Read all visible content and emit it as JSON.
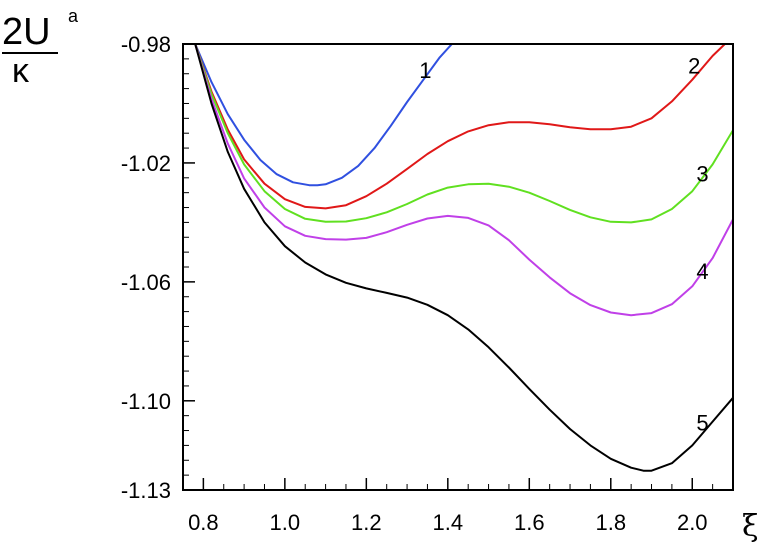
{
  "chart_data": {
    "type": "line",
    "xlabel": "ξ",
    "ylabel": {
      "numerator": "2U",
      "superscript": "a",
      "denominator": "κ"
    },
    "xlim": [
      0.75,
      2.1
    ],
    "ylim": [
      -1.13,
      -0.98
    ],
    "x_ticks": [
      0.8,
      1.0,
      1.2,
      1.4,
      1.6,
      1.8,
      2.0
    ],
    "x_tick_labels": [
      "0.8",
      "1.0",
      "1.2",
      "1.4",
      "1.6",
      "1.8",
      "2.0"
    ],
    "y_ticks": [
      -0.98,
      -1.02,
      -1.06,
      -1.1,
      -1.13
    ],
    "y_tick_labels": [
      "-0.98",
      "-1.02",
      "-1.06",
      "-1.10",
      "-1.13"
    ],
    "grid": false,
    "series": [
      {
        "name": "1",
        "color": "#3050e0",
        "x": [
          0.78,
          0.82,
          0.86,
          0.9,
          0.94,
          0.98,
          1.02,
          1.06,
          1.08,
          1.1,
          1.14,
          1.18,
          1.22,
          1.26,
          1.3,
          1.34,
          1.38,
          1.41
        ],
        "y": [
          -0.98,
          -0.9928,
          -1.0036,
          -1.0122,
          -1.019,
          -1.0238,
          -1.0265,
          -1.0275,
          -1.0275,
          -1.0272,
          -1.025,
          -1.021,
          -1.015,
          -1.0075,
          -0.9995,
          -0.992,
          -0.9845,
          -0.98
        ]
      },
      {
        "name": "2",
        "color": "#e01818",
        "x": [
          0.78,
          0.82,
          0.86,
          0.9,
          0.95,
          1.0,
          1.05,
          1.1,
          1.15,
          1.2,
          1.25,
          1.3,
          1.35,
          1.4,
          1.45,
          1.5,
          1.55,
          1.6,
          1.65,
          1.7,
          1.75,
          1.8,
          1.85,
          1.9,
          1.95,
          2.0,
          2.05,
          2.08
        ],
        "y": [
          -0.98,
          -0.996,
          -1.0088,
          -1.0188,
          -1.027,
          -1.0322,
          -1.0348,
          -1.0353,
          -1.0342,
          -1.0312,
          -1.027,
          -1.022,
          -1.017,
          -1.0127,
          -1.0094,
          -1.0073,
          -1.0063,
          -1.0063,
          -1.007,
          -1.008,
          -1.0087,
          -1.0087,
          -1.0078,
          -1.005,
          -0.9993,
          -0.992,
          -0.984,
          -0.98
        ]
      },
      {
        "name": "3",
        "color": "#60e020",
        "x": [
          0.78,
          0.82,
          0.86,
          0.9,
          0.95,
          1.0,
          1.05,
          1.1,
          1.15,
          1.2,
          1.25,
          1.3,
          1.35,
          1.4,
          1.45,
          1.5,
          1.55,
          1.6,
          1.65,
          1.7,
          1.75,
          1.8,
          1.85,
          1.9,
          1.95,
          2.0,
          2.05,
          2.1
        ],
        "y": [
          -0.98,
          -0.9968,
          -1.01,
          -1.0205,
          -1.0295,
          -1.0355,
          -1.0388,
          -1.0398,
          -1.0397,
          -1.0386,
          -1.0366,
          -1.0338,
          -1.0306,
          -1.0283,
          -1.0272,
          -1.027,
          -1.028,
          -1.03,
          -1.0328,
          -1.0358,
          -1.0383,
          -1.0398,
          -1.04,
          -1.039,
          -1.0355,
          -1.0295,
          -1.0205,
          -1.009
        ]
      },
      {
        "name": "4",
        "color": "#c040e8",
        "x": [
          0.78,
          0.82,
          0.86,
          0.9,
          0.95,
          1.0,
          1.05,
          1.1,
          1.15,
          1.2,
          1.25,
          1.3,
          1.35,
          1.4,
          1.45,
          1.5,
          1.55,
          1.6,
          1.65,
          1.7,
          1.75,
          1.8,
          1.85,
          1.9,
          1.95,
          2.0,
          2.05,
          2.1
        ],
        "y": [
          -0.98,
          -0.9985,
          -1.0135,
          -1.0252,
          -1.035,
          -1.0413,
          -1.0445,
          -1.0456,
          -1.0458,
          -1.0452,
          -1.0433,
          -1.0408,
          -1.0387,
          -1.0378,
          -1.0385,
          -1.041,
          -1.046,
          -1.0525,
          -1.0585,
          -1.0638,
          -1.0678,
          -1.0703,
          -1.0712,
          -1.0705,
          -1.0675,
          -1.0615,
          -1.052,
          -1.039
        ]
      },
      {
        "name": "5",
        "color": "#000000",
        "x": [
          0.78,
          0.82,
          0.86,
          0.9,
          0.95,
          1.0,
          1.05,
          1.1,
          1.15,
          1.2,
          1.25,
          1.3,
          1.35,
          1.4,
          1.45,
          1.5,
          1.55,
          1.6,
          1.65,
          1.7,
          1.75,
          1.8,
          1.85,
          1.88,
          1.9,
          1.95,
          2.0,
          2.05,
          2.1
        ],
        "y": [
          -0.98,
          -1.0,
          -1.0163,
          -1.0287,
          -1.04,
          -1.048,
          -1.0535,
          -1.0575,
          -1.0603,
          -1.0622,
          -1.0637,
          -1.0653,
          -1.0677,
          -1.0712,
          -1.076,
          -1.082,
          -1.0888,
          -1.096,
          -1.103,
          -1.1095,
          -1.115,
          -1.1195,
          -1.1225,
          -1.1235,
          -1.1235,
          -1.121,
          -1.115,
          -1.107,
          -1.099
        ]
      }
    ]
  }
}
